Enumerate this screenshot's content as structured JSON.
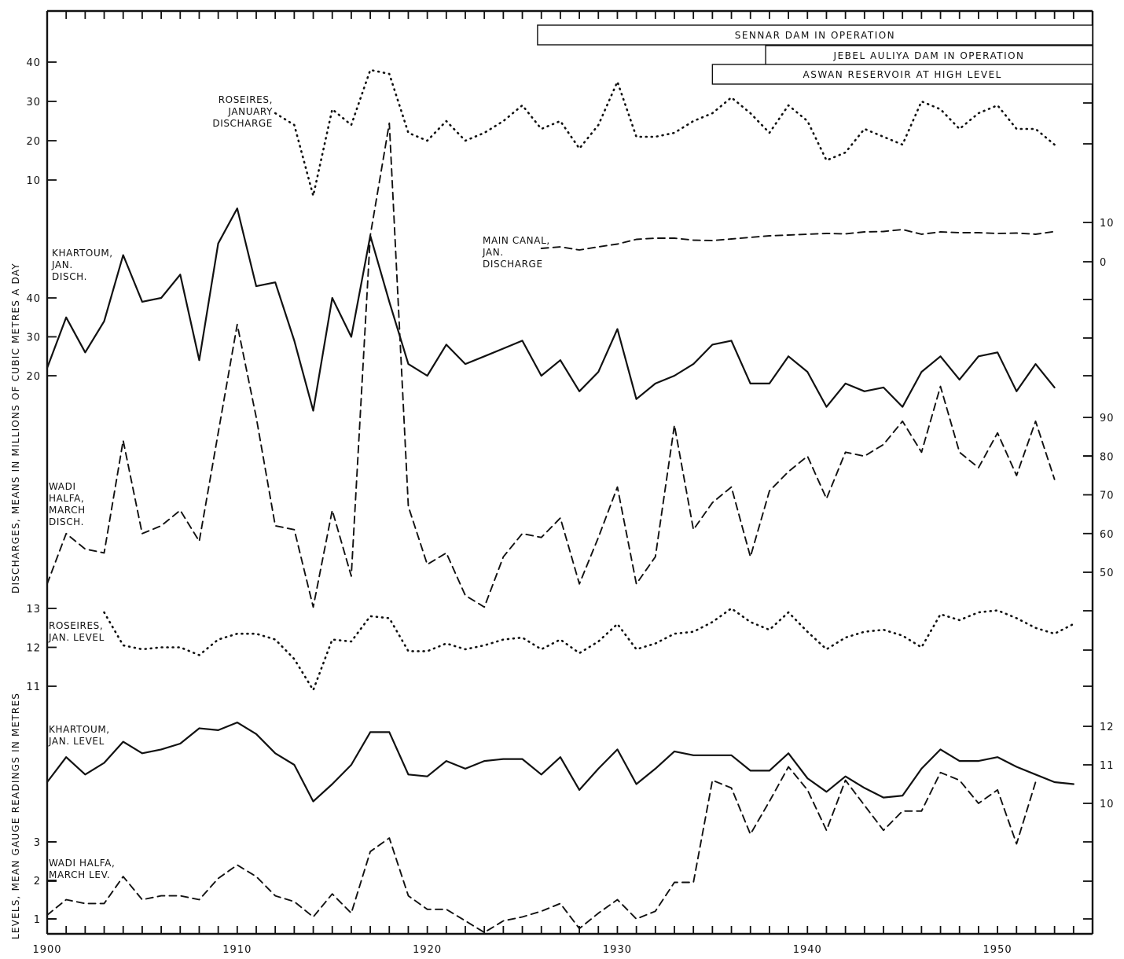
{
  "chart_data": {
    "type": "line",
    "ylabel_upper": "DISCHARGES, MEANS IN MILLIONS OF CUBIC METRES A DAY",
    "ylabel_lower": "LEVELS, MEAN GAUGE READINGS IN METRES",
    "x_ticks": [
      "1900",
      "1910",
      "1920",
      "1930",
      "1940",
      "1950"
    ],
    "xlim": [
      1900,
      1955
    ],
    "operation_periods": [
      {
        "label": "SENNAR DAM IN OPERATION",
        "start": 1925.8,
        "end": 1955
      },
      {
        "label": "JEBEL AULIYA DAM IN OPERATION",
        "start": 1937.8,
        "end": 1955
      },
      {
        "label": "ASWAN RESERVOIR AT HIGH LEVEL",
        "start": 1935,
        "end": 1955
      }
    ],
    "series": [
      {
        "name": "ROSEIRES, JANUARY DISCHARGE",
        "label_lines": [
          "ROSEIRES,",
          "JANUARY",
          "DISCHARGE"
        ],
        "style": "dotted",
        "left_axis_ticks": [
          10,
          20,
          30,
          40
        ],
        "x": [
          1912,
          1913,
          1914,
          1915,
          1916,
          1917,
          1918,
          1919,
          1920,
          1921,
          1922,
          1923,
          1924,
          1925,
          1926,
          1927,
          1928,
          1929,
          1930,
          1931,
          1932,
          1933,
          1934,
          1935,
          1936,
          1937,
          1938,
          1939,
          1940,
          1941,
          1942,
          1943,
          1944,
          1945,
          1946,
          1947,
          1948,
          1949,
          1950,
          1951,
          1952,
          1953
        ],
        "y": [
          27,
          24,
          6,
          28,
          24,
          38,
          37,
          22,
          20,
          25,
          20,
          22,
          25,
          29,
          23,
          25,
          18,
          24,
          35,
          21,
          21,
          22,
          25,
          27,
          31,
          27,
          22,
          29,
          25,
          15,
          17,
          23,
          21,
          19,
          30,
          28,
          23,
          27,
          29,
          23,
          23,
          19
        ]
      },
      {
        "name": "MAIN CANAL, JAN. DISCHARGE",
        "label_lines": [
          "MAIN CANAL,",
          "JAN.",
          "DISCHARGE"
        ],
        "style": "dashed",
        "right_axis_ticks": [
          0,
          10
        ],
        "x": [
          1926,
          1927,
          1928,
          1929,
          1930,
          1931,
          1932,
          1933,
          1934,
          1935,
          1936,
          1937,
          1938,
          1939,
          1940,
          1941,
          1942,
          1943,
          1944,
          1945,
          1946,
          1947,
          1948,
          1949,
          1950,
          1951,
          1952,
          1953
        ],
        "y": [
          3.4,
          3.8,
          3.0,
          3.8,
          4.5,
          5.7,
          6.0,
          6.0,
          5.5,
          5.4,
          5.8,
          6.2,
          6.6,
          6.8,
          7.0,
          7.2,
          7.1,
          7.6,
          7.7,
          8.2,
          7.0,
          7.6,
          7.4,
          7.4,
          7.2,
          7.3,
          7.0,
          7.7
        ]
      },
      {
        "name": "KHARTOUM, JAN. DISCH.",
        "label_lines": [
          "KHARTOUM,",
          "JAN.",
          "DISCH."
        ],
        "style": "solid",
        "left_axis_ticks": [
          20,
          30,
          40
        ],
        "x": [
          1900,
          1901,
          1902,
          1903,
          1904,
          1905,
          1906,
          1907,
          1908,
          1909,
          1910,
          1911,
          1912,
          1913,
          1914,
          1915,
          1916,
          1917,
          1918,
          1919,
          1920,
          1921,
          1922,
          1923,
          1924,
          1925,
          1926,
          1927,
          1928,
          1929,
          1930,
          1931,
          1932,
          1933,
          1934,
          1935,
          1936,
          1937,
          1938,
          1939,
          1940,
          1941,
          1942,
          1943,
          1944,
          1945,
          1946,
          1947,
          1948,
          1949,
          1950,
          1951,
          1952,
          1953
        ],
        "y": [
          22,
          35,
          26,
          34,
          51,
          39,
          40,
          46,
          24,
          54,
          63,
          43,
          44,
          29,
          11,
          40,
          30,
          56,
          39,
          23,
          20,
          28,
          23,
          25,
          27,
          29,
          20,
          24,
          16,
          21,
          32,
          14,
          18,
          20,
          23,
          28,
          29,
          18,
          18,
          25,
          21,
          12,
          18,
          16,
          17,
          12,
          21,
          25,
          19,
          25,
          26,
          16,
          23,
          17
        ]
      },
      {
        "name": "WADI HALFA, MARCH DISCH.",
        "label_lines": [
          "WADI",
          "HALFA,",
          "MARCH",
          "DISCH."
        ],
        "style": "dashed",
        "right_axis_ticks": [
          50,
          60,
          70,
          80,
          90
        ],
        "x": [
          1900,
          1901,
          1902,
          1903,
          1904,
          1905,
          1906,
          1907,
          1908,
          1909,
          1910,
          1911,
          1912,
          1913,
          1914,
          1915,
          1916,
          1917,
          1918,
          1919,
          1920,
          1921,
          1922,
          1923,
          1924,
          1925,
          1926,
          1927,
          1928,
          1929,
          1930,
          1931,
          1932,
          1933,
          1934,
          1935,
          1936,
          1937,
          1938,
          1939,
          1940,
          1941,
          1942,
          1943,
          1944,
          1945,
          1946,
          1947,
          1948,
          1949,
          1950,
          1951,
          1952,
          1953
        ],
        "y": [
          47,
          60,
          56,
          55,
          84,
          60,
          62,
          66,
          58,
          86,
          114,
          90,
          62,
          61,
          41,
          66,
          49,
          137,
          166,
          67,
          52,
          55,
          44,
          41,
          54,
          60,
          59,
          64,
          47,
          59,
          72,
          47,
          54,
          88,
          61,
          68,
          72,
          54,
          71,
          76,
          80,
          69,
          81,
          80,
          83,
          89,
          81,
          98,
          81,
          77,
          86,
          75,
          89,
          74
        ]
      },
      {
        "name": "ROSEIRES, JAN. LEVEL",
        "label_lines": [
          "ROSEIRES,",
          "JAN. LEVEL"
        ],
        "style": "dotted",
        "left_axis_ticks": [
          11,
          12,
          13
        ],
        "x": [
          1903,
          1904,
          1905,
          1906,
          1907,
          1908,
          1909,
          1910,
          1911,
          1912,
          1913,
          1914,
          1915,
          1916,
          1917,
          1918,
          1919,
          1920,
          1921,
          1922,
          1923,
          1924,
          1925,
          1926,
          1927,
          1928,
          1929,
          1930,
          1931,
          1932,
          1933,
          1934,
          1935,
          1936,
          1937,
          1938,
          1939,
          1940,
          1941,
          1942,
          1943,
          1944,
          1945,
          1946,
          1947,
          1948,
          1949,
          1950,
          1951,
          1952,
          1953,
          1954
        ],
        "y": [
          12.9,
          12.05,
          11.95,
          12.0,
          12.0,
          11.8,
          12.2,
          12.35,
          12.35,
          12.2,
          11.7,
          10.9,
          12.2,
          12.15,
          12.8,
          12.75,
          11.9,
          11.9,
          12.1,
          11.95,
          12.05,
          12.2,
          12.25,
          11.95,
          12.2,
          11.85,
          12.15,
          12.6,
          11.95,
          12.1,
          12.35,
          12.4,
          12.65,
          13.0,
          12.65,
          12.45,
          12.9,
          12.4,
          11.95,
          12.25,
          12.4,
          12.45,
          12.3,
          12.0,
          12.85,
          12.7,
          12.9,
          12.95,
          12.75,
          12.5,
          12.35,
          12.6
        ]
      },
      {
        "name": "KHARTOUM, JAN. LEVEL",
        "label_lines": [
          "KHARTOUM,",
          "JAN. LEVEL"
        ],
        "style": "solid",
        "right_axis_ticks": [
          10,
          11,
          12
        ],
        "x": [
          1900,
          1901,
          1902,
          1903,
          1904,
          1905,
          1906,
          1907,
          1908,
          1909,
          1910,
          1911,
          1912,
          1913,
          1914,
          1915,
          1916,
          1917,
          1918,
          1919,
          1920,
          1921,
          1922,
          1923,
          1924,
          1925,
          1926,
          1927,
          1928,
          1929,
          1930,
          1931,
          1932,
          1933,
          1934,
          1935,
          1936,
          1937,
          1938,
          1939,
          1940,
          1941,
          1942,
          1943,
          1944,
          1945,
          1946,
          1947,
          1948,
          1949,
          1950,
          1951,
          1952,
          1953,
          1954
        ],
        "y": [
          10.55,
          11.2,
          10.75,
          11.05,
          11.6,
          11.3,
          11.4,
          11.55,
          11.95,
          11.9,
          12.1,
          11.8,
          11.3,
          11.0,
          10.05,
          10.5,
          11.0,
          11.85,
          11.85,
          10.75,
          10.7,
          11.1,
          10.9,
          11.1,
          11.15,
          11.15,
          10.75,
          11.2,
          10.35,
          10.9,
          11.4,
          10.5,
          10.9,
          11.35,
          11.25,
          11.25,
          11.25,
          10.85,
          10.85,
          11.3,
          10.65,
          10.3,
          10.7,
          10.4,
          10.15,
          10.2,
          10.9,
          11.4,
          11.1,
          11.1,
          11.2,
          10.95,
          10.75,
          10.55,
          10.5
        ]
      },
      {
        "name": "WADI HALFA, MARCH LEV.",
        "label_lines": [
          "WADI HALFA,",
          "MARCH LEV."
        ],
        "style": "dashed",
        "left_axis_ticks": [
          1,
          2,
          3
        ],
        "x": [
          1900,
          1901,
          1902,
          1903,
          1904,
          1905,
          1906,
          1907,
          1908,
          1909,
          1910,
          1911,
          1912,
          1913,
          1914,
          1915,
          1916,
          1917,
          1918,
          1919,
          1920,
          1921,
          1922,
          1923,
          1924,
          1925,
          1926,
          1927,
          1928,
          1929,
          1930,
          1931,
          1932,
          1933,
          1934,
          1935,
          1936,
          1937,
          1938,
          1939,
          1940,
          1941,
          1942,
          1943,
          1944,
          1945,
          1946,
          1947,
          1948,
          1949,
          1950,
          1951,
          1952
        ],
        "y": [
          1.1,
          1.5,
          1.4,
          1.4,
          2.1,
          1.5,
          1.6,
          1.6,
          1.5,
          2.05,
          2.4,
          2.1,
          1.6,
          1.45,
          1.05,
          1.65,
          1.15,
          2.75,
          3.1,
          1.6,
          1.25,
          1.25,
          0.95,
          0.65,
          0.95,
          1.05,
          1.2,
          1.4,
          0.75,
          1.15,
          1.5,
          1.0,
          1.2,
          1.95,
          1.95,
          4.6,
          4.4,
          3.2,
          4.05,
          4.95,
          4.35,
          3.3,
          4.6,
          3.95,
          3.3,
          3.8,
          3.8,
          4.8,
          4.6,
          4.0,
          4.35,
          2.95,
          4.55
        ]
      }
    ],
    "right_axis_scales": [
      {
        "series": "MAIN CANAL, JAN. DISCHARGE",
        "ticks": [
          0,
          10
        ]
      },
      {
        "series": "WADI HALFA, MARCH DISCH.",
        "ticks": [
          50,
          60,
          70,
          80,
          90
        ]
      },
      {
        "series": "KHARTOUM, JAN. LEVEL",
        "ticks": [
          10,
          11,
          12
        ]
      }
    ]
  }
}
